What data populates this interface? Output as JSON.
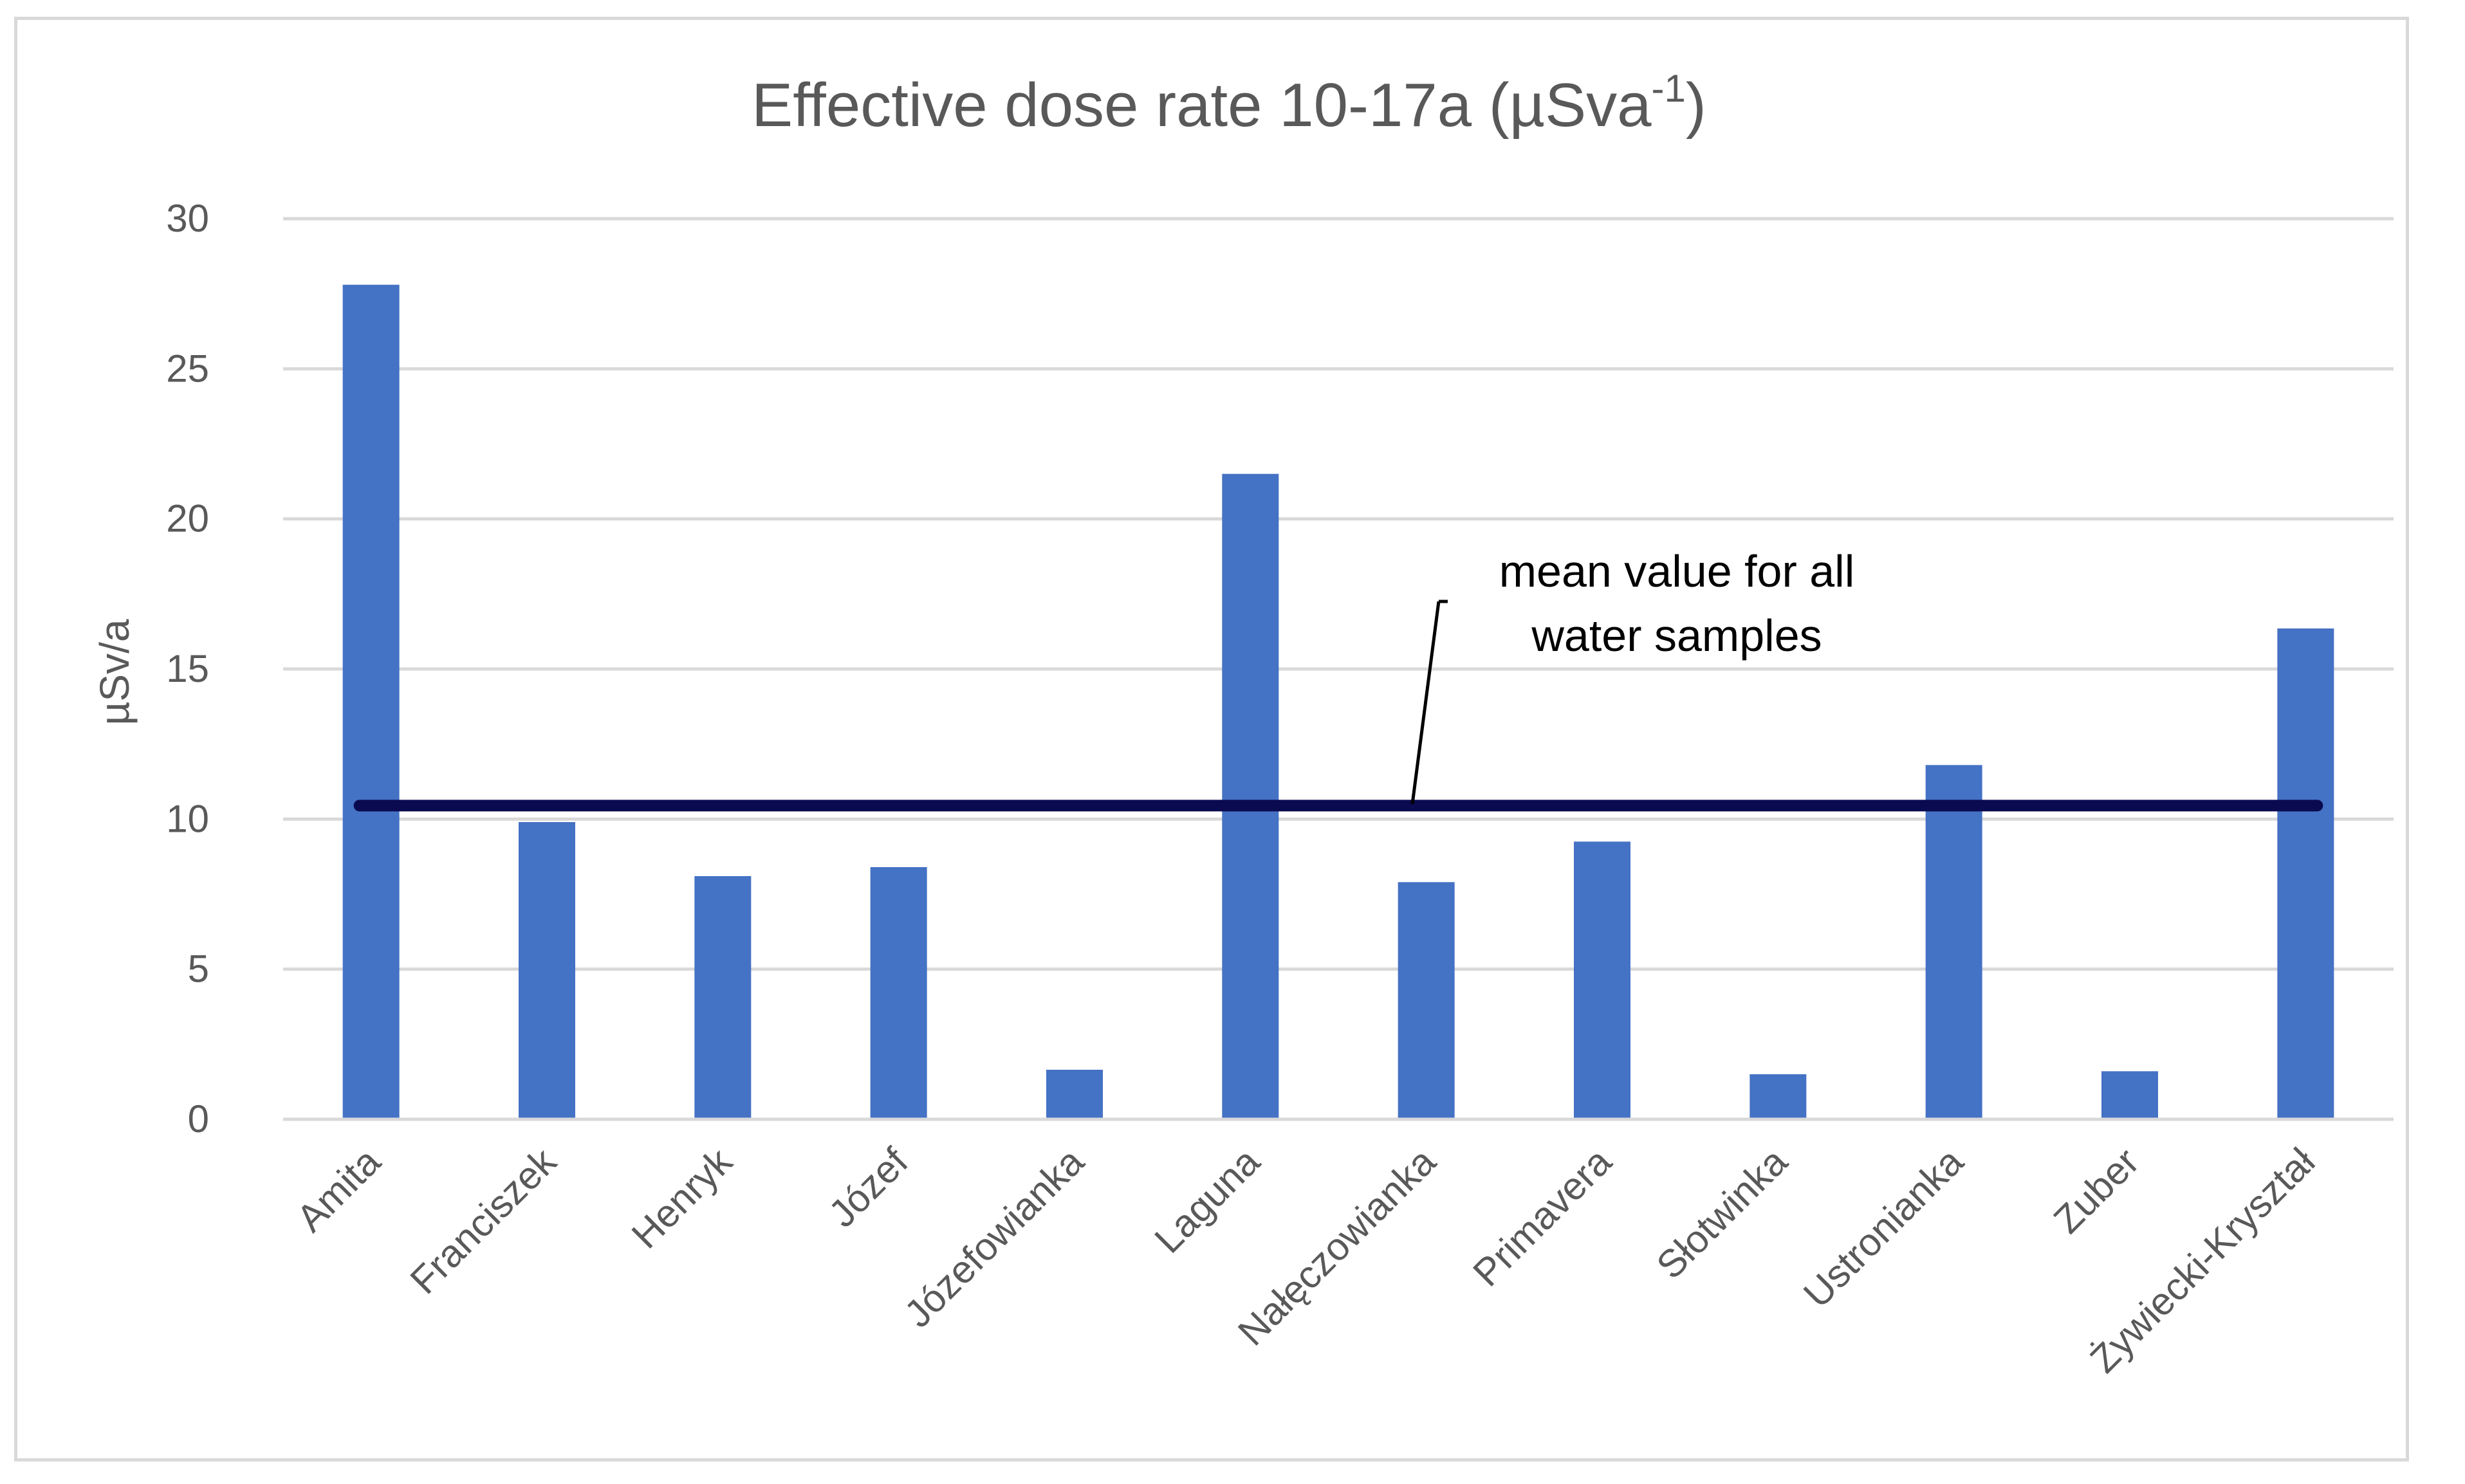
{
  "chart_data": {
    "type": "bar",
    "title": "Effective dose rate 10-17a (µSva",
    "title_superscript": "-1",
    "title_suffix": ")",
    "ylabel": "µSv/a",
    "xlabel": "",
    "ylim": [
      0,
      30
    ],
    "yticks": [
      0,
      5,
      10,
      15,
      20,
      25,
      30
    ],
    "grid": true,
    "categories": [
      "Amita",
      "Franciszek",
      "Henryk",
      "Józef",
      "Józefowianka",
      "Laguna",
      "Nałęczowianka",
      "Primavera",
      "Słotwinka",
      "Ustronianka",
      "Zuber",
      "Żywiecki-Kryształ"
    ],
    "values": [
      27.8,
      9.9,
      8.1,
      8.4,
      1.65,
      21.5,
      7.9,
      9.25,
      1.5,
      11.8,
      1.6,
      16.35
    ],
    "mean_line": {
      "value": 10.45
    },
    "annotation": {
      "line1": "mean value for all",
      "line2": "water samples"
    },
    "colors": {
      "bar": "#4472c4",
      "mean_line": "#0a0a50",
      "grid": "#d9d9d9",
      "text": "#595959",
      "annotation": "#000000"
    }
  }
}
